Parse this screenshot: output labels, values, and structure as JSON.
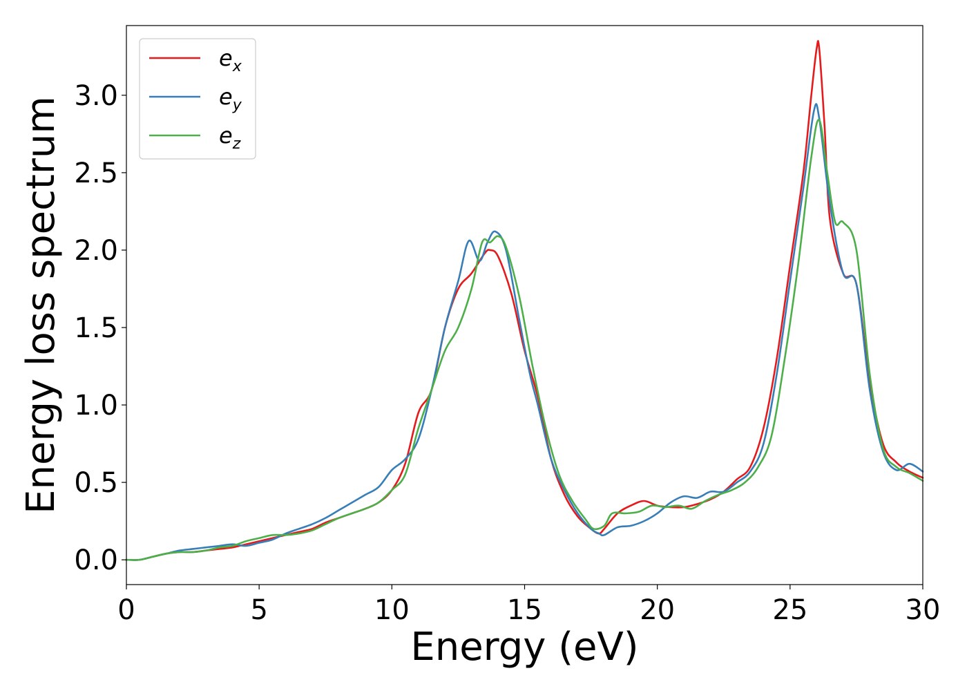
{
  "chart_data": {
    "type": "line",
    "xlabel": "Energy (eV)",
    "ylabel": "Energy loss spectrum",
    "xlim": [
      0,
      30
    ],
    "ylim": [
      -0.16,
      3.45
    ],
    "xticks": [
      0,
      5,
      10,
      15,
      20,
      25,
      30
    ],
    "xtick_labels": [
      "0",
      "5",
      "10",
      "15",
      "20",
      "25",
      "30"
    ],
    "yticks": [
      0.0,
      0.5,
      1.0,
      1.5,
      2.0,
      2.5,
      3.0
    ],
    "ytick_labels": [
      "0.0",
      "0.5",
      "1.0",
      "1.5",
      "2.0",
      "2.5",
      "3.0"
    ],
    "grid": false,
    "legend_position": "top-left",
    "series": [
      {
        "name": "e",
        "subscript": "x",
        "color": "#e41a1c",
        "x": [
          0,
          0.5,
          1,
          1.5,
          2,
          2.5,
          3,
          3.5,
          4,
          4.5,
          5,
          5.5,
          6,
          6.5,
          7,
          7.5,
          8,
          8.5,
          9,
          9.5,
          10,
          10.5,
          11,
          11.5,
          12,
          12.5,
          13,
          13.5,
          13.7,
          14,
          14.5,
          15,
          15.5,
          16,
          16.5,
          17,
          17.5,
          17.8,
          18,
          18.5,
          19,
          19.5,
          20,
          20.5,
          21,
          21.5,
          22,
          22.5,
          23,
          23.5,
          24,
          24.5,
          25,
          25.5,
          25.8,
          26,
          26.1,
          26.3,
          26.5,
          27,
          27.5,
          28,
          28.5,
          29,
          29.5,
          30
        ],
        "y": [
          0.0,
          0.0,
          0.02,
          0.04,
          0.05,
          0.05,
          0.06,
          0.07,
          0.08,
          0.1,
          0.12,
          0.14,
          0.16,
          0.18,
          0.2,
          0.24,
          0.27,
          0.3,
          0.33,
          0.37,
          0.45,
          0.62,
          0.95,
          1.1,
          1.5,
          1.75,
          1.85,
          1.98,
          2.0,
          1.96,
          1.72,
          1.35,
          1.05,
          0.65,
          0.42,
          0.28,
          0.2,
          0.17,
          0.2,
          0.3,
          0.35,
          0.38,
          0.35,
          0.34,
          0.34,
          0.36,
          0.39,
          0.44,
          0.52,
          0.6,
          0.85,
          1.3,
          1.9,
          2.5,
          3.0,
          3.3,
          3.3,
          2.8,
          2.2,
          1.85,
          1.78,
          1.15,
          0.75,
          0.63,
          0.57,
          0.53
        ]
      },
      {
        "name": "e",
        "subscript": "y",
        "color": "#377eb8",
        "x": [
          0,
          0.5,
          1,
          1.5,
          2,
          2.5,
          3,
          3.5,
          4,
          4.5,
          5,
          5.5,
          6,
          6.5,
          7,
          7.5,
          8,
          8.5,
          9,
          9.5,
          10,
          10.5,
          11,
          11.5,
          12,
          12.5,
          12.9,
          13.3,
          13.6,
          13.9,
          14.3,
          14.8,
          15.2,
          15.5,
          16,
          16.5,
          17,
          17.5,
          17.8,
          18,
          18.5,
          19,
          19.5,
          20,
          20.5,
          21,
          21.5,
          22,
          22.5,
          23,
          23.5,
          24,
          24.5,
          25,
          25.5,
          25.9,
          26.1,
          26.5,
          27,
          27.5,
          28,
          28.5,
          29,
          29.5,
          30
        ],
        "y": [
          0.0,
          0.0,
          0.02,
          0.04,
          0.06,
          0.07,
          0.08,
          0.09,
          0.1,
          0.09,
          0.11,
          0.13,
          0.17,
          0.2,
          0.23,
          0.27,
          0.32,
          0.37,
          0.42,
          0.47,
          0.58,
          0.65,
          0.78,
          1.1,
          1.5,
          1.8,
          2.06,
          1.93,
          2.05,
          2.12,
          2.0,
          1.55,
          1.2,
          1.0,
          0.65,
          0.45,
          0.3,
          0.2,
          0.17,
          0.16,
          0.21,
          0.22,
          0.25,
          0.3,
          0.37,
          0.41,
          0.4,
          0.44,
          0.44,
          0.5,
          0.57,
          0.75,
          1.2,
          1.8,
          2.4,
          2.9,
          2.85,
          2.3,
          1.85,
          1.78,
          1.1,
          0.7,
          0.58,
          0.62,
          0.57
        ]
      },
      {
        "name": "e",
        "subscript": "z",
        "color": "#4daf4a",
        "x": [
          0,
          0.5,
          1,
          1.5,
          2,
          2.5,
          3,
          3.5,
          4,
          4.5,
          5,
          5.5,
          6,
          6.5,
          7,
          7.5,
          8,
          8.5,
          9,
          9.5,
          10,
          10.5,
          11,
          11.5,
          12,
          12.5,
          13,
          13.4,
          13.7,
          14,
          14.3,
          14.8,
          15.3,
          15.8,
          16.3,
          16.8,
          17.3,
          17.6,
          18,
          18.3,
          18.8,
          19.3,
          19.8,
          20.3,
          20.8,
          21.3,
          21.8,
          22.3,
          22.8,
          23.3,
          23.8,
          24.3,
          24.8,
          25.3,
          25.8,
          26.1,
          26.4,
          26.7,
          27,
          27.5,
          28,
          28.5,
          29,
          29.5,
          30
        ],
        "y": [
          0.0,
          0.0,
          0.02,
          0.04,
          0.05,
          0.05,
          0.06,
          0.08,
          0.09,
          0.12,
          0.14,
          0.16,
          0.16,
          0.17,
          0.19,
          0.23,
          0.27,
          0.3,
          0.33,
          0.37,
          0.45,
          0.55,
          0.85,
          1.1,
          1.35,
          1.5,
          1.75,
          2.05,
          2.05,
          2.09,
          2.02,
          1.7,
          1.25,
          0.85,
          0.55,
          0.38,
          0.26,
          0.2,
          0.22,
          0.3,
          0.3,
          0.31,
          0.35,
          0.34,
          0.35,
          0.33,
          0.38,
          0.42,
          0.45,
          0.5,
          0.6,
          0.8,
          1.3,
          1.9,
          2.6,
          2.84,
          2.5,
          2.18,
          2.18,
          2.0,
          1.2,
          0.72,
          0.6,
          0.56,
          0.51
        ]
      }
    ]
  }
}
